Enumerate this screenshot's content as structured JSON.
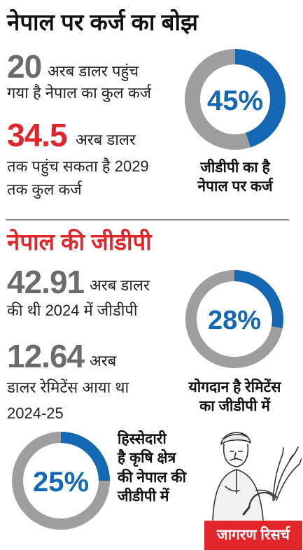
{
  "section1": {
    "title": "नेपाल पर कर्ज का बोझ",
    "stat1_value": "20",
    "stat1_line1": "अरब डालर पहुंच",
    "stat1_line2": "गया है नेपाल का कुल कर्ज",
    "stat2_value": "34.5",
    "stat2_line1": "अरब डालर",
    "stat2_line2": "तक पहुंच सकता है 2029",
    "stat2_line3": "तक कुल कर्ज",
    "ring": {
      "percent": 45,
      "label": "45%",
      "caption_line1": "जीडीपी का है",
      "caption_line2": "नेपाल पर कर्ज"
    }
  },
  "section2": {
    "title": "नेपाल की जीडीपी",
    "stat1_value": "42.91",
    "stat1_line1": "अरब डालर",
    "stat1_line2": "की थी 2024 में जीडीपी",
    "stat2_value": "12.64",
    "stat2_line1": "अरब",
    "stat2_line2": "डालर रेमिटेंस आया था",
    "stat2_line3": "2024-25",
    "ring": {
      "percent": 28,
      "label": "28%",
      "caption_line1": "योगदान है रेमिटेंस",
      "caption_line2": "का जीडीपी में"
    }
  },
  "section3": {
    "ring": {
      "percent": 25,
      "label": "25%"
    },
    "caption_line1": "हिस्सेदारी",
    "caption_line2": "है कृषि क्षेत्र",
    "caption_line3": "की नेपाल की",
    "caption_line4": "जीडीपी में",
    "illustration": "farmer-with-sickle-and-crop-illustration"
  },
  "source": "जागरण रिसर्च",
  "colors": {
    "accent_blue": "#1467b3",
    "ring_grey": "#9e9e9e",
    "red": "#e0262b",
    "stat_grey": "#6b6b6b"
  }
}
